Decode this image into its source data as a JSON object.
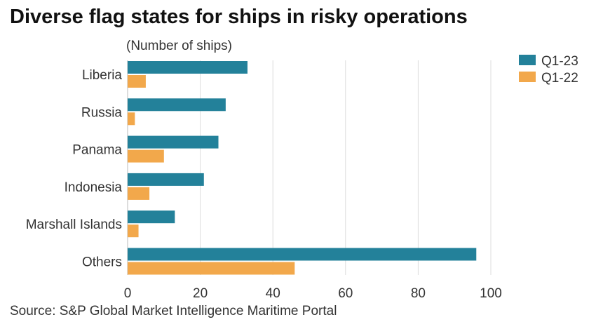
{
  "chart_data": {
    "type": "bar",
    "orientation": "horizontal",
    "title": "Diverse flag states for ships in risky operations",
    "subtitle": "(Number of ships)",
    "source": "Source: S&P Global Market Intelligence Maritime Portal",
    "categories": [
      "Liberia",
      "Russia",
      "Panama",
      "Indonesia",
      "Marshall Islands",
      "Others"
    ],
    "series": [
      {
        "name": "Q1-23",
        "color": "#23819a",
        "values": [
          33,
          27,
          25,
          21,
          13,
          96
        ]
      },
      {
        "name": "Q1-22",
        "color": "#f2a84b",
        "values": [
          5,
          2,
          10,
          6,
          3,
          46
        ]
      }
    ],
    "xlim": [
      0,
      100
    ],
    "xticks": [
      0,
      20,
      40,
      60,
      80,
      100
    ],
    "grid": true,
    "legend": "top-right"
  }
}
